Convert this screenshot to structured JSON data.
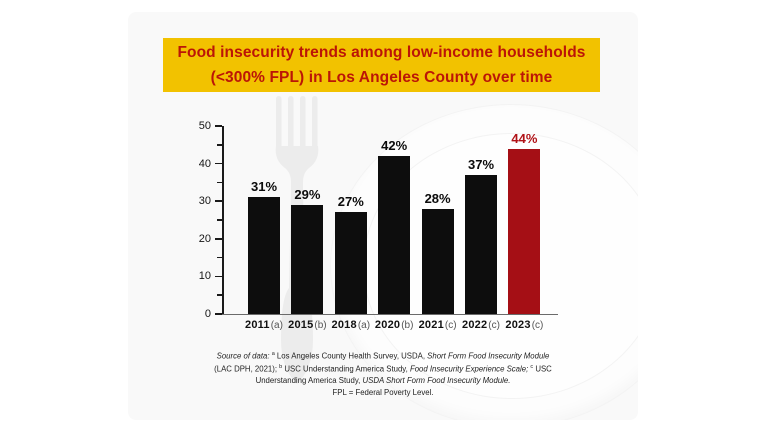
{
  "page": {
    "background": "#ffffff",
    "card_background": "#f9f9f9"
  },
  "banner": {
    "line1": "Food insecurity trends among low-income households",
    "line2": "(<300% FPL) in Los Angeles County over time",
    "background_color": "#f2c200",
    "text_color": "#bb1507"
  },
  "chart_data": {
    "type": "bar",
    "categories": [
      "2011",
      "2015",
      "2018",
      "2020",
      "2021",
      "2022",
      "2023"
    ],
    "category_suffixes": [
      "(a)",
      "(b)",
      "(a)",
      "(b)",
      "(c)",
      "(c)",
      "(c)"
    ],
    "values": [
      31,
      29,
      27,
      42,
      28,
      37,
      44
    ],
    "value_labels": [
      "31%",
      "29%",
      "27%",
      "42%",
      "28%",
      "37%",
      "44%"
    ],
    "bar_color": "#0d0d0d",
    "highlight_index": 6,
    "highlight_color": "#a50f15",
    "highlight_label_color": "#b01217",
    "ylim": [
      0,
      50
    ],
    "yticks": [
      0,
      10,
      20,
      30,
      40,
      50
    ],
    "minor_tick_step": 5,
    "grid": false,
    "legend": false,
    "title": "Food insecurity trends among low-income households (<300% FPL) in Los Angeles County over time",
    "xlabel": "",
    "ylabel": ""
  },
  "source_note": {
    "seg_italic_1": "Source of data: ",
    "sup_a": "a",
    "seg_2": " Los Angeles County Health Survey, USDA, ",
    "seg_italic_3": "Short Form Food Insecurity Module",
    "seg_4": " (LAC DPH, 2021); ",
    "sup_b": "b",
    "seg_5": " USC Understanding America Study, ",
    "seg_italic_6": "Food Insecurity Experience Scale; ",
    "sup_c": "c",
    "seg_7": " USC Understanding America Study, ",
    "seg_italic_8": "USDA Short Form Food Insecurity Module.",
    "line_2": "FPL = Federal Poverty Level."
  },
  "decor": {
    "fork_icon": "fork",
    "knife_icon": "knife",
    "plate": "dinner plate",
    "cutlery_color": "#ececec"
  }
}
